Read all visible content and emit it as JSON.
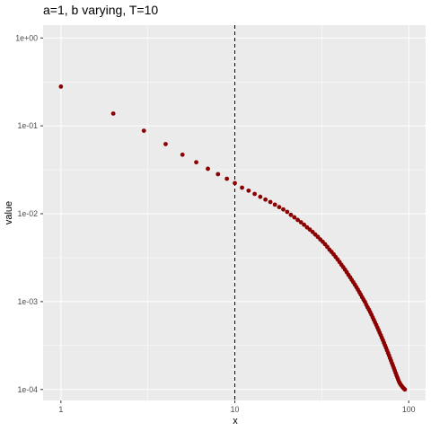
{
  "chart_data": {
    "type": "scatter",
    "title": "a=1, b varying, T=10",
    "xlabel": "x",
    "ylabel": "value",
    "x_scale": "log10",
    "y_scale": "log10",
    "xlim": [
      0.79,
      125
    ],
    "ylim": [
      7.5e-05,
      1.4
    ],
    "grid": true,
    "legend": "none",
    "point_color": "#8b0000",
    "panel_color": "#ebebeb",
    "grid_color": "#ffffff",
    "x_ticks": [
      {
        "value": 1,
        "label": "1"
      },
      {
        "value": 10,
        "label": "10"
      },
      {
        "value": 100,
        "label": "100"
      }
    ],
    "y_ticks": [
      {
        "value": 1,
        "label": "1e+00"
      },
      {
        "value": 0.1,
        "label": "1e-01"
      },
      {
        "value": 0.01,
        "label": "1e-02"
      },
      {
        "value": 0.001,
        "label": "1e-03"
      },
      {
        "value": 0.0001,
        "label": "1e-04"
      }
    ],
    "vline": {
      "x": 10,
      "style": "dashed",
      "color": "#000000"
    },
    "points": {
      "x_start": 1,
      "x_end": 95,
      "x_step": 1,
      "values": [
        0.28,
        0.138,
        0.088,
        0.062,
        0.047,
        0.0385,
        0.0325,
        0.0282,
        0.025,
        0.0223,
        0.0198,
        0.0183,
        0.0168,
        0.0156,
        0.0145,
        0.0136,
        0.0127,
        0.0119,
        0.0112,
        0.0105,
        0.0097,
        0.0091,
        0.0085,
        0.008,
        0.0075,
        0.007,
        0.0066,
        0.0062,
        0.0058,
        0.00545,
        0.0051,
        0.0048,
        0.0045,
        0.0042,
        0.0039,
        0.00368,
        0.00345,
        0.00322,
        0.00302,
        0.00282,
        0.00263,
        0.00247,
        0.00231,
        0.00216,
        0.00202,
        0.00189,
        0.00177,
        0.00166,
        0.00156,
        0.00146,
        0.00137,
        0.00128,
        0.0012,
        0.00112,
        0.00105,
        0.00099,
        0.00092,
        0.00086,
        0.00081,
        0.00076,
        0.00071,
        0.000663,
        0.00062,
        0.00058,
        0.000543,
        0.000508,
        0.000475,
        0.000444,
        0.000416,
        0.000389,
        0.000364,
        0.00034,
        0.000318,
        0.000298,
        0.000279,
        0.000261,
        0.000244,
        0.000228,
        0.000214,
        0.0002,
        0.000188,
        0.000176,
        0.000165,
        0.000155,
        0.000145,
        0.000137,
        0.000129,
        0.000122,
        0.000117,
        0.000113,
        0.00011,
        0.000107,
        0.000104,
        0.000102,
        0.0001
      ]
    }
  }
}
